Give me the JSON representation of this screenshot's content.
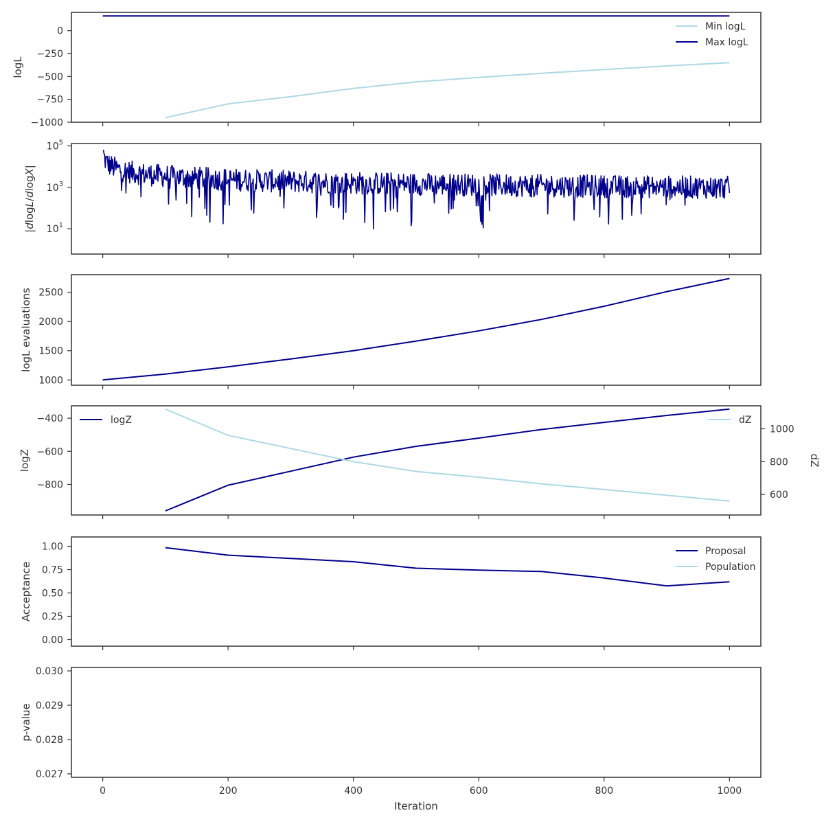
{
  "colors": {
    "dark": "#00008B",
    "light": "#ADD8E6"
  },
  "shared_x": {
    "label": "Iteration",
    "lim": [
      -50,
      1050
    ],
    "ticks": [
      0,
      200,
      400,
      600,
      800,
      1000
    ],
    "tick_labels": [
      "0",
      "200",
      "400",
      "600",
      "800",
      "1000"
    ]
  },
  "chart_data": [
    {
      "type": "line",
      "ylabel": "logL",
      "ylim": [
        -1000,
        200
      ],
      "yticks": [
        0,
        -250,
        -500,
        -750,
        -1000
      ],
      "ytick_labels": [
        "0",
        "−250",
        "−500",
        "−750",
        "−1000"
      ],
      "legend": "top-right",
      "series": [
        {
          "name": "Min logL",
          "color": "light",
          "x": [
            100,
            200,
            300,
            400,
            500,
            600,
            700,
            800,
            900,
            1000
          ],
          "y": [
            -950,
            -800,
            -720,
            -630,
            -560,
            -510,
            -465,
            -425,
            -385,
            -350
          ]
        },
        {
          "name": "Max logL",
          "color": "dark",
          "x": [
            0,
            1000
          ],
          "y": [
            160,
            160
          ]
        }
      ]
    },
    {
      "type": "line",
      "ylabel": "|dlogL/dlogX|",
      "yscale": "log",
      "ylim": [
        0.6,
        130000
      ],
      "yticks": [
        10,
        1000,
        100000
      ],
      "ytick_labels": [
        "10",
        "10",
        "10"
      ],
      "ytick_exponents": [
        "1",
        "3",
        "5"
      ],
      "series": [
        {
          "name": "",
          "color": "dark",
          "x_start": 1,
          "x_end": 1000,
          "y": []
        }
      ]
    },
    {
      "type": "line",
      "ylabel": "logL evaluations",
      "ylim": [
        910,
        2800
      ],
      "yticks": [
        1000,
        1500,
        2000,
        2500
      ],
      "ytick_labels": [
        "1000",
        "1500",
        "2000",
        "2500"
      ],
      "series": [
        {
          "name": "",
          "color": "dark",
          "x": [
            0,
            100,
            200,
            300,
            400,
            500,
            600,
            700,
            800,
            900,
            1000
          ],
          "y": [
            1000,
            1100,
            1225,
            1360,
            1500,
            1665,
            1840,
            2035,
            2260,
            2510,
            2735
          ]
        }
      ]
    },
    {
      "type": "line",
      "ylabel": "logZ",
      "ylabel_right": "dZ",
      "ylim": [
        -985,
        -325
      ],
      "yticks": [
        -400,
        -600,
        -800
      ],
      "ytick_labels": [
        "−400",
        "−600",
        "−800"
      ],
      "ylim_right": [
        475,
        1140
      ],
      "yticks_right": [
        600,
        800,
        1000
      ],
      "ytick_labels_right": [
        "600",
        "800",
        "1000"
      ],
      "legend": "top-left",
      "legend_right": "top-right",
      "series": [
        {
          "name": "logZ",
          "color": "dark",
          "axis": "left",
          "x": [
            100,
            200,
            300,
            400,
            500,
            600,
            700,
            800,
            900,
            1000
          ],
          "y": [
            -960,
            -805,
            -720,
            -635,
            -570,
            -520,
            -468,
            -425,
            -383,
            -345
          ]
        },
        {
          "name": "dZ",
          "color": "light",
          "axis": "right",
          "x": [
            100,
            200,
            300,
            400,
            500,
            600,
            700,
            800,
            900,
            1000
          ],
          "y": [
            1120,
            960,
            880,
            800,
            740,
            705,
            665,
            630,
            595,
            560
          ]
        }
      ]
    },
    {
      "type": "line",
      "ylabel": "Acceptance",
      "ylim": [
        -0.07,
        1.1
      ],
      "yticks": [
        0,
        0.25,
        0.5,
        0.75,
        1.0
      ],
      "ytick_labels": [
        "0.00",
        "0.25",
        "0.50",
        "0.75",
        "1.00"
      ],
      "legend": "top-right",
      "series": [
        {
          "name": "Proposal",
          "color": "dark",
          "x": [
            100,
            200,
            300,
            400,
            500,
            600,
            700,
            800,
            900,
            1000
          ],
          "y": [
            0.985,
            0.905,
            0.87,
            0.835,
            0.765,
            0.745,
            0.73,
            0.66,
            0.575,
            0.62
          ]
        },
        {
          "name": "Population",
          "color": "light",
          "x": [],
          "y": []
        }
      ]
    },
    {
      "type": "line",
      "ylabel": "p-value",
      "ylim": [
        0.0269,
        0.0301
      ],
      "yticks": [
        0.027,
        0.028,
        0.029,
        0.03
      ],
      "ytick_labels": [
        "0.027",
        "0.028",
        "0.029",
        "0.030"
      ],
      "series": []
    }
  ]
}
